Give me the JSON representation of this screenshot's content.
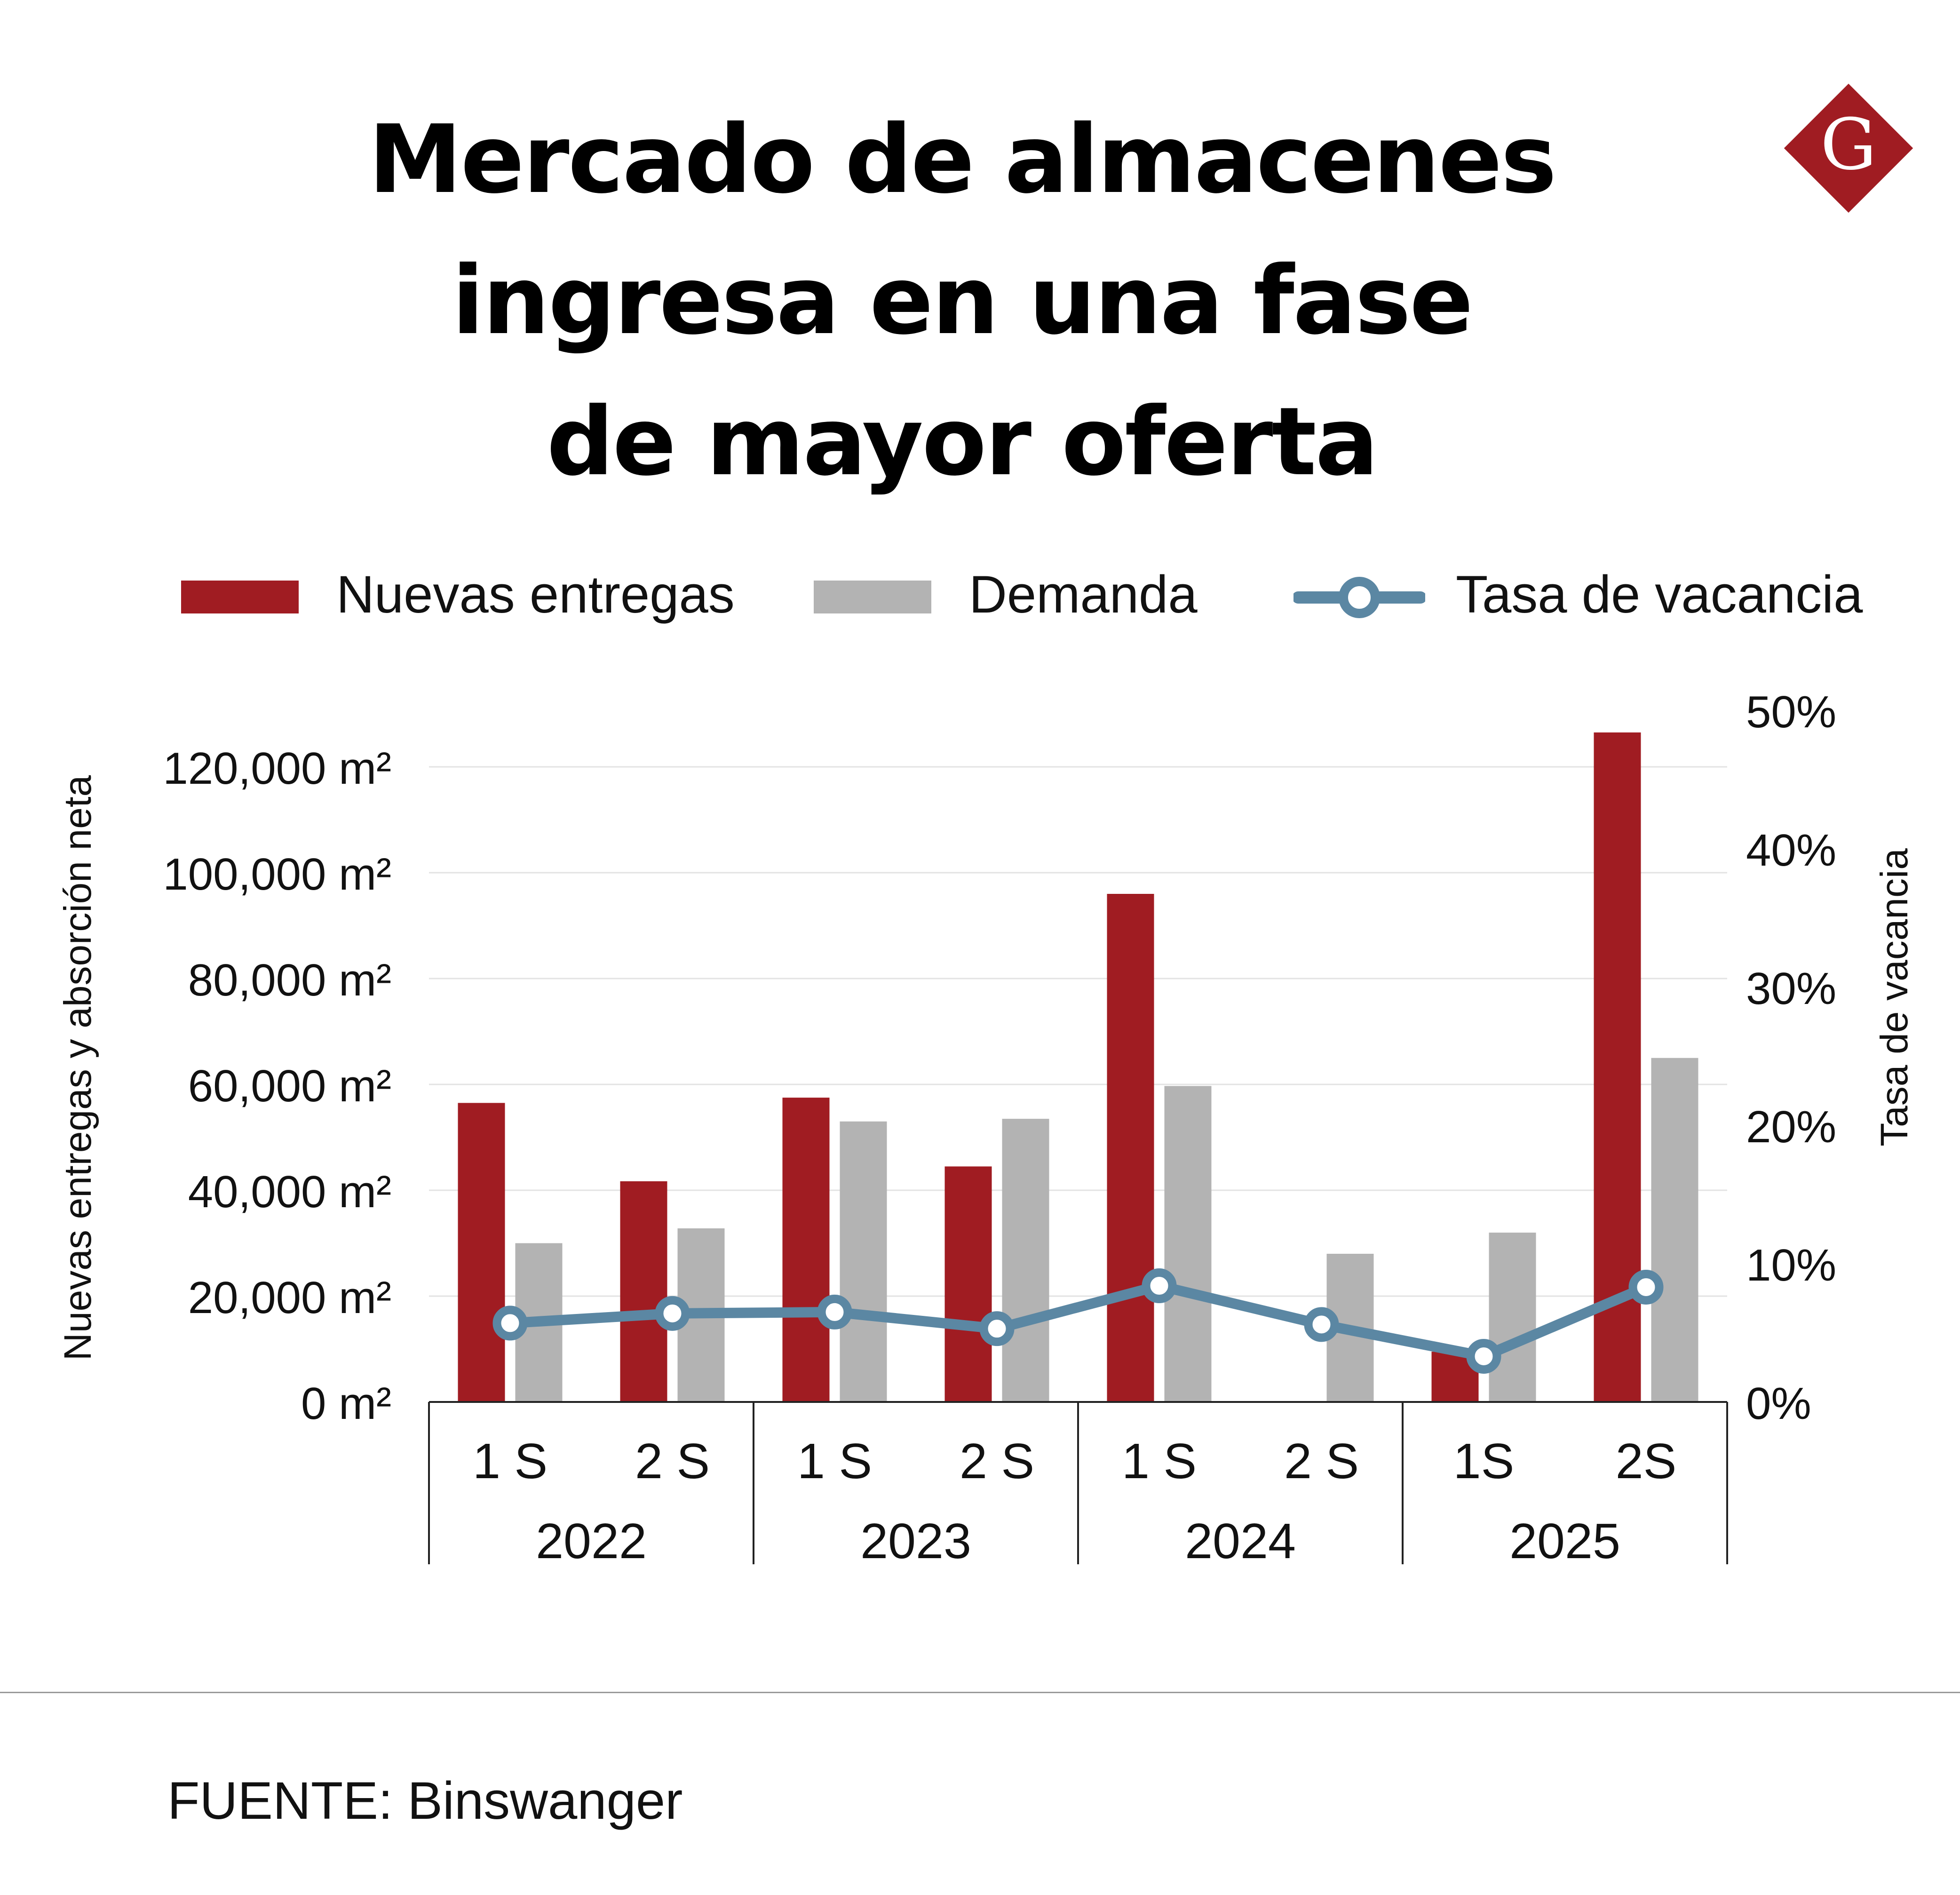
{
  "title": {
    "line1": "Mercado de almacenes",
    "line2": "ingresa en una fase",
    "line3": "de mayor oferta"
  },
  "logo": {
    "letter": "G",
    "color": "#a01c22",
    "icon": "gestion-logo-icon"
  },
  "legend": {
    "items": [
      {
        "label": "Nuevas entregas",
        "color": "#a01c22",
        "kind": "bar"
      },
      {
        "label": "Demanda",
        "color": "#b3b3b3",
        "kind": "bar"
      },
      {
        "label": "Tasa de vacancia",
        "color": "#5b87a3",
        "kind": "line"
      }
    ]
  },
  "chart_data": {
    "type": "bar",
    "categories": [
      "1 S",
      "2 S",
      "1 S",
      "2 S",
      "1 S",
      "2 S",
      "1S",
      "2S"
    ],
    "groups": [
      {
        "label": "2022",
        "span": 2
      },
      {
        "label": "2023",
        "span": 2
      },
      {
        "label": "2024",
        "span": 2
      },
      {
        "label": "2025",
        "span": 2
      }
    ],
    "series": [
      {
        "name": "Nuevas entregas",
        "axis": "left",
        "type": "bar",
        "color": "#a01c22",
        "values": [
          56500,
          41700,
          57500,
          44500,
          96000,
          0,
          9500,
          126500
        ]
      },
      {
        "name": "Demanda",
        "axis": "left",
        "type": "bar",
        "color": "#b3b3b3",
        "values": [
          30000,
          32800,
          53000,
          53500,
          59700,
          28000,
          32000,
          65000
        ]
      },
      {
        "name": "Tasa de vacancia",
        "axis": "right",
        "type": "line",
        "color": "#5b87a3",
        "values": [
          5.7,
          6.4,
          6.5,
          5.3,
          8.4,
          5.6,
          3.3,
          8.3
        ]
      }
    ],
    "left_axis": {
      "label": "Nuevas entregas y absorción neta",
      "ylim": [
        0,
        120000
      ],
      "ticks": [
        {
          "value": 0,
          "label": "0 m²"
        },
        {
          "value": 20000,
          "label": "20,000 m²"
        },
        {
          "value": 40000,
          "label": "40,000 m²"
        },
        {
          "value": 60000,
          "label": "60,000 m²"
        },
        {
          "value": 80000,
          "label": "80,000 m²"
        },
        {
          "value": 100000,
          "label": "100,000 m²"
        },
        {
          "value": 120000,
          "label": "120,000 m²"
        }
      ]
    },
    "right_axis": {
      "label": "Tasa de vacancia",
      "ylim": [
        0,
        50
      ],
      "ticks": [
        {
          "value": 0,
          "label": "0%"
        },
        {
          "value": 10,
          "label": "10%"
        },
        {
          "value": 20,
          "label": "20%"
        },
        {
          "value": 30,
          "label": "30%"
        },
        {
          "value": 40,
          "label": "40%"
        },
        {
          "value": 50,
          "label": "50%"
        }
      ]
    },
    "grid": true
  },
  "source": "FUENTE: Binswanger"
}
